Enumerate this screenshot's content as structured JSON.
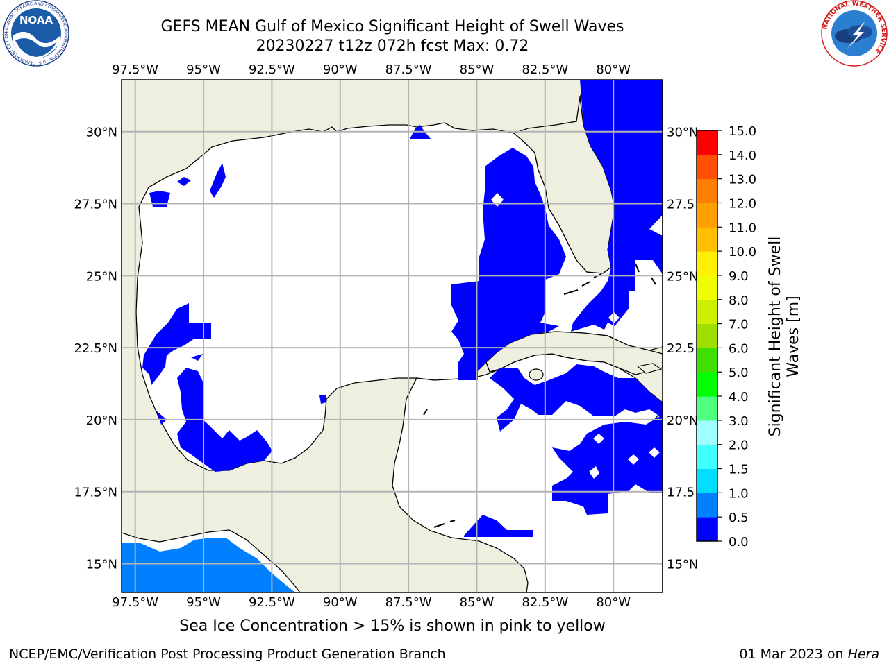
{
  "title": {
    "line1": "GEFS MEAN Gulf of Mexico Significant Height of Swell Waves",
    "line2": "20230227 t12z 072h fcst   Max: 0.72"
  },
  "logos": {
    "left": "NOAA",
    "left_ring": "NATIONAL OCEANIC AND ATMOSPHERIC ADMINISTRATION · U.S. DEPARTMENT OF COMMERCE",
    "right_ring": "NATIONAL WEATHER SERVICE"
  },
  "map": {
    "lon_labels": [
      "97.5°W",
      "95°W",
      "92.5°W",
      "90°W",
      "87.5°W",
      "85°W",
      "82.5°W",
      "80°W"
    ],
    "lon_values": [
      -97.5,
      -95,
      -92.5,
      -90,
      -87.5,
      -85,
      -82.5,
      -80
    ],
    "lat_labels_left": [
      "30°N",
      "27.5°N",
      "25°N",
      "22.5°N",
      "20°N",
      "17.5°N",
      "15°N"
    ],
    "lat_labels_right": [
      "30°N",
      "27.5",
      "25°N",
      "22.5",
      "20°N",
      "17.5",
      "15°N"
    ],
    "lat_values": [
      30,
      27.5,
      25,
      22.5,
      20,
      17.5,
      15
    ],
    "extent": {
      "lon_min": -98,
      "lon_max": -78.2,
      "lat_min": 14,
      "lat_max": 31.8
    },
    "colors": {
      "land": "#efefdf",
      "ocean": "#ffffff",
      "grid": "#b4b4b4",
      "coast": "#000000"
    }
  },
  "colorbar": {
    "label": "Significant Height of Swell Waves [m]",
    "ticks": [
      "0.0",
      "0.5",
      "1.0",
      "1.5",
      "2.0",
      "3.0",
      "4.0",
      "5.0",
      "6.0",
      "7.0",
      "8.0",
      "9.0",
      "10.0",
      "11.0",
      "12.0",
      "13.0",
      "14.0",
      "15.0"
    ],
    "colors": [
      "#0000ff",
      "#0080ff",
      "#00ddff",
      "#3fffff",
      "#9fffff",
      "#4fff7f",
      "#00ff00",
      "#3fdf00",
      "#9fdf00",
      "#cfef00",
      "#efff00",
      "#ffef00",
      "#ffbf00",
      "#ff9f00",
      "#ff7f00",
      "#ff4f00",
      "#ff0000"
    ]
  },
  "caption": "Sea Ice Concentration > 15% is shown in pink to yellow",
  "footer": {
    "left": "NCEP/EMC/Verification Post Processing Product Generation Branch",
    "right_date": "01 Mar 2023 on ",
    "right_machine": "Hera"
  }
}
